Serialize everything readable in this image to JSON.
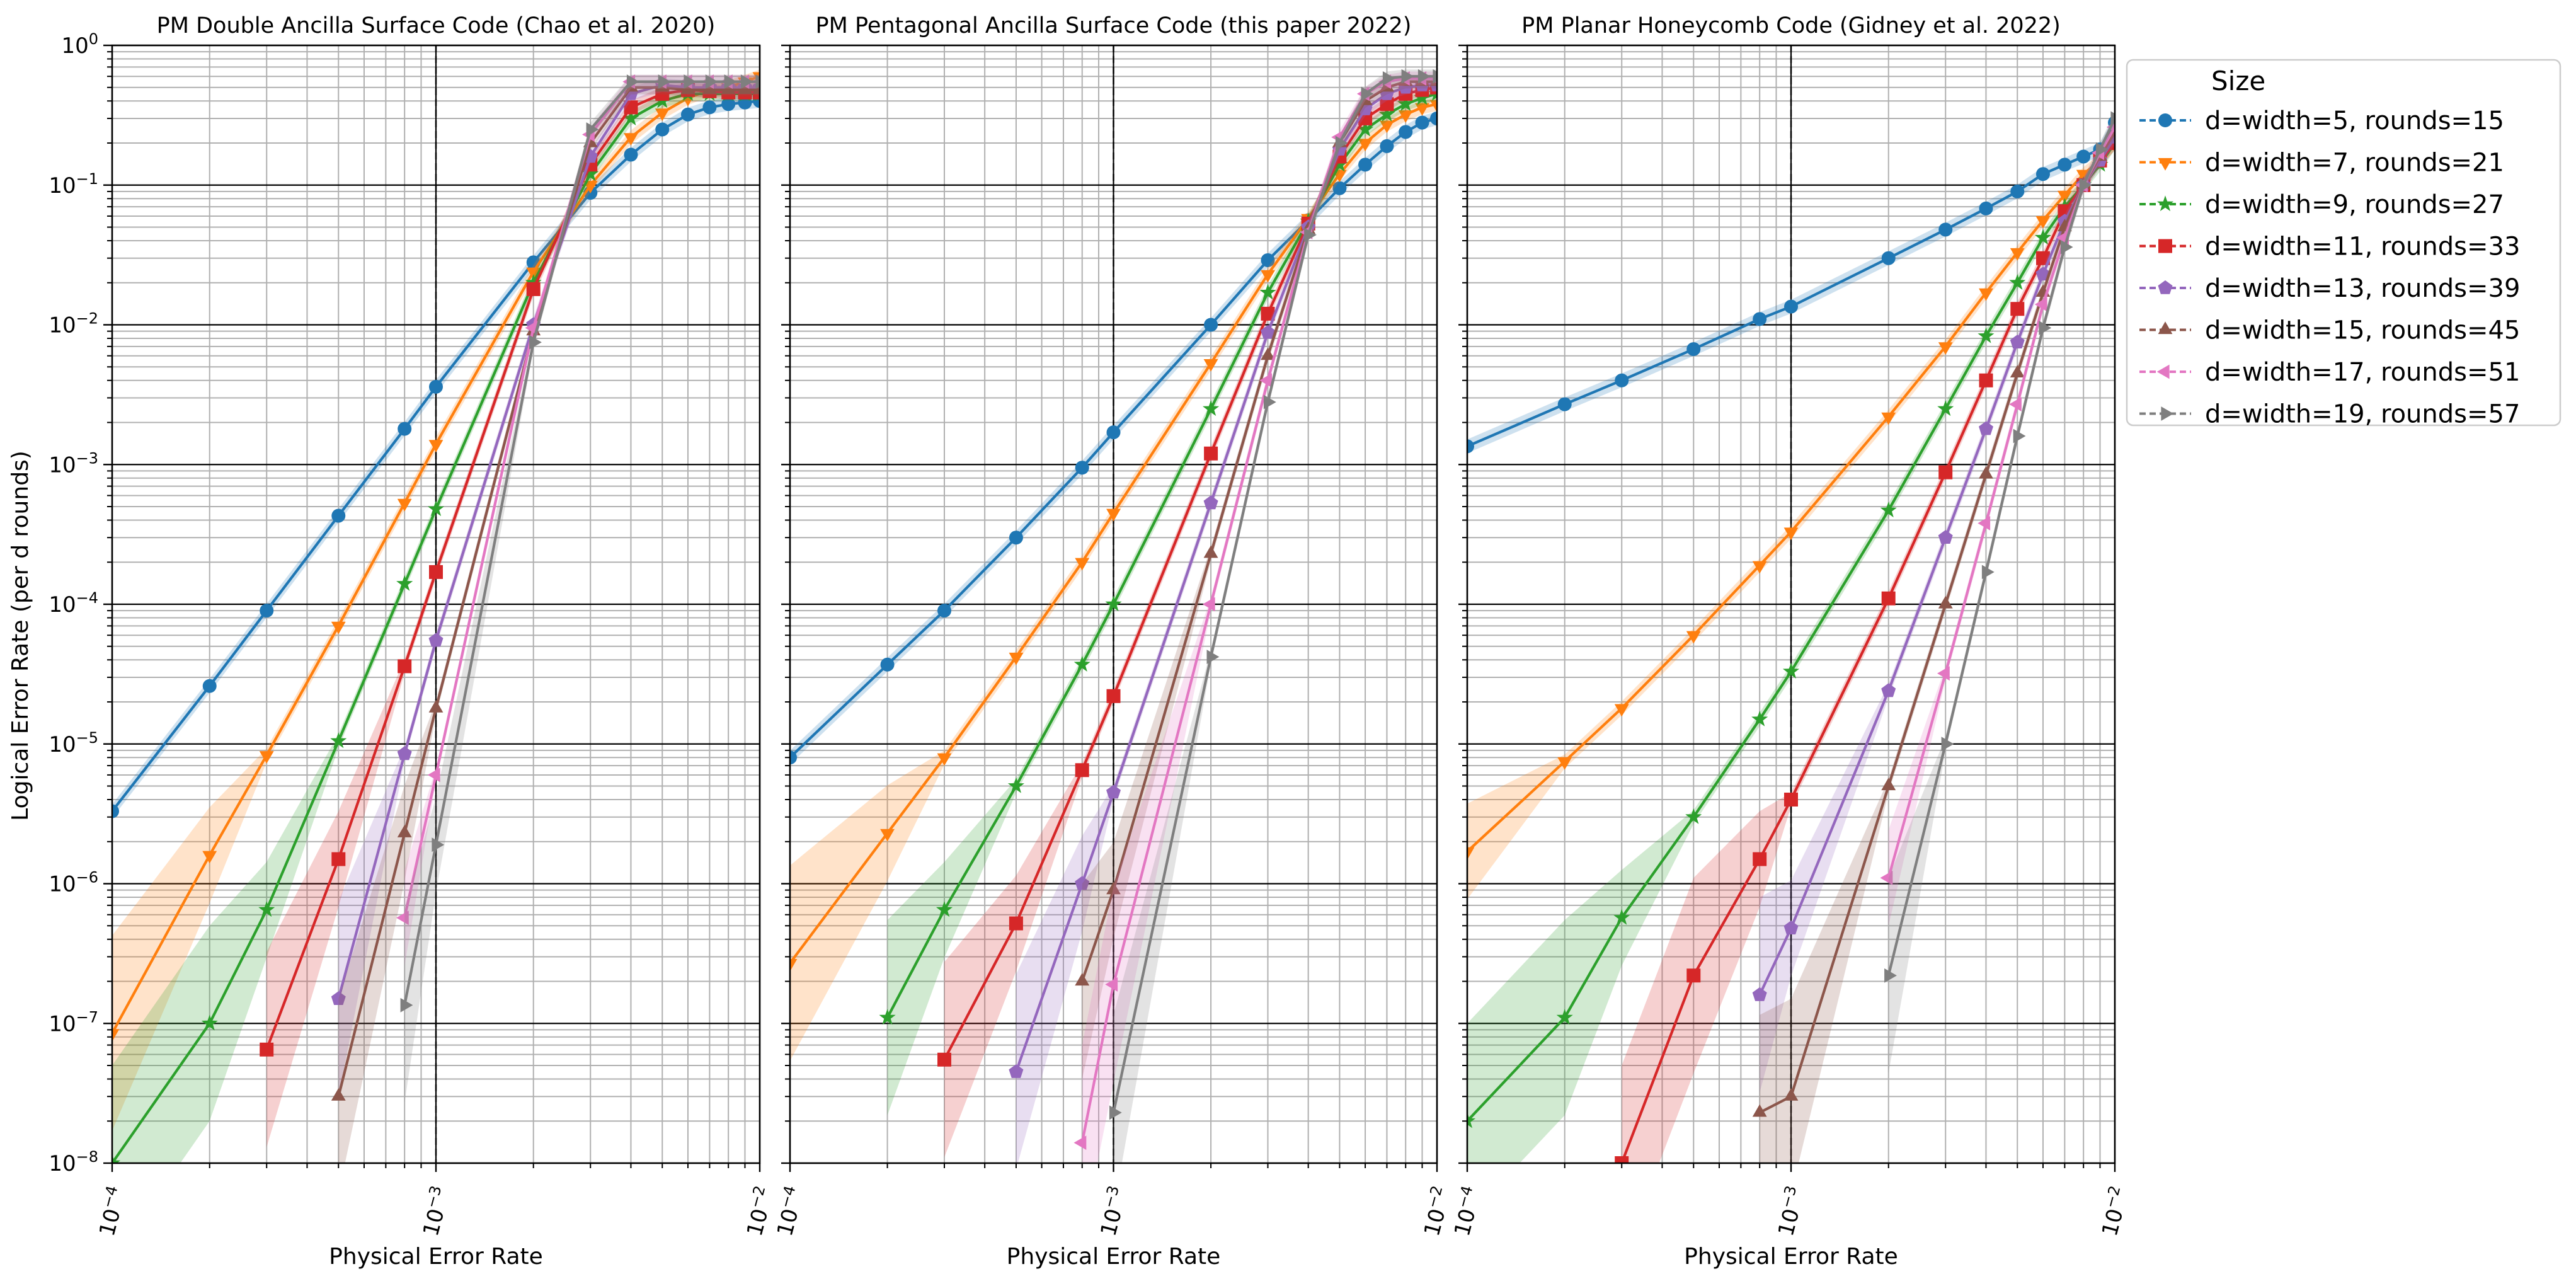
{
  "figure": {
    "ylabel": "Logical Error Rate (per d rounds)",
    "legend_title": "Size",
    "legend_placement": "outside-right-top"
  },
  "chart_data": [
    {
      "type": "line",
      "title": "PM Double Ancilla Surface Code (Chao et al. 2020)",
      "xlabel": "Physical Error Rate",
      "xscale": "log",
      "yscale": "log",
      "xlim": [
        0.0001,
        0.01
      ],
      "ylim": [
        1e-08,
        1
      ],
      "grid": true,
      "reference_line_x": 0.001,
      "x_tick_labels": [
        "10^-4",
        "10^-3",
        "10^-2"
      ],
      "y_tick_labels": [
        "10^-8",
        "10^-7",
        "10^-6",
        "10^-5",
        "10^-4",
        "10^-3",
        "10^-2",
        "10^-1",
        "10^0"
      ],
      "series": [
        {
          "name": "d=width=5, rounds=15",
          "x": [
            0.0001,
            0.0002,
            0.0003,
            0.0005,
            0.0008,
            0.001,
            0.002,
            0.003,
            0.004,
            0.005,
            0.006,
            0.007,
            0.008,
            0.009,
            0.01
          ],
          "y": [
            3.3e-06,
            2.6e-05,
            9e-05,
            0.00043,
            0.0018,
            0.0036,
            0.028,
            0.088,
            0.165,
            0.25,
            0.32,
            0.36,
            0.38,
            0.39,
            0.4
          ]
        },
        {
          "name": "d=width=7, rounds=21",
          "x": [
            0.0001,
            0.0002,
            0.0003,
            0.0005,
            0.0008,
            0.001,
            0.002,
            0.003,
            0.004,
            0.005,
            0.006,
            0.007,
            0.008,
            0.009,
            0.01
          ],
          "y": [
            8.5e-08,
            1.6e-06,
            8.3e-06,
            7e-05,
            0.00053,
            0.0014,
            0.024,
            0.1,
            0.22,
            0.33,
            0.42,
            0.48,
            0.5,
            0.55,
            0.6
          ]
        },
        {
          "name": "d=width=9, rounds=27",
          "x": [
            0.0001,
            0.0002,
            0.0003,
            0.0005,
            0.0008,
            0.001,
            0.002,
            0.003,
            0.004,
            0.005,
            0.006,
            0.007,
            0.008,
            0.009,
            0.01
          ],
          "y": [
            1e-08,
            1e-07,
            6.5e-07,
            1.05e-05,
            0.00014,
            0.00048,
            0.02,
            0.12,
            0.3,
            0.4,
            0.45,
            0.45,
            0.45,
            0.45,
            0.45
          ]
        },
        {
          "name": "d=width=11, rounds=33",
          "x": [
            0.0003,
            0.0005,
            0.0008,
            0.001,
            0.002,
            0.003,
            0.004,
            0.005,
            0.006,
            0.007,
            0.008,
            0.009,
            0.01
          ],
          "y": [
            6.5e-08,
            1.5e-06,
            3.6e-05,
            0.00017,
            0.018,
            0.14,
            0.36,
            0.45,
            0.48,
            0.47,
            0.46,
            0.46,
            0.46
          ]
        },
        {
          "name": "d=width=13, rounds=39",
          "x": [
            0.0005,
            0.0008,
            0.001,
            0.002,
            0.003,
            0.004,
            0.005,
            0.006,
            0.007,
            0.008,
            0.009,
            0.01
          ],
          "y": [
            1.5e-07,
            8.5e-06,
            5.5e-05,
            0.01,
            0.16,
            0.45,
            0.52,
            0.5,
            0.5,
            0.5,
            0.5,
            0.5
          ]
        },
        {
          "name": "d=width=15, rounds=45",
          "x": [
            0.0005,
            0.0008,
            0.001,
            0.002,
            0.003,
            0.004,
            0.005,
            0.006,
            0.007,
            0.008,
            0.009,
            0.01
          ],
          "y": [
            3e-08,
            2.3e-06,
            1.8e-05,
            0.009,
            0.2,
            0.5,
            0.5,
            0.48,
            0.48,
            0.48,
            0.48,
            0.48
          ]
        },
        {
          "name": "d=width=17, rounds=51",
          "x": [
            0.0008,
            0.001,
            0.002,
            0.003,
            0.004,
            0.005,
            0.006,
            0.007,
            0.008,
            0.009,
            0.01
          ],
          "y": [
            5.7e-07,
            6e-06,
            0.0095,
            0.23,
            0.55,
            0.55,
            0.55,
            0.55,
            0.55,
            0.55,
            0.55
          ]
        },
        {
          "name": "d=width=19, rounds=57",
          "x": [
            0.0008,
            0.001,
            0.002,
            0.003,
            0.004,
            0.005,
            0.006,
            0.007,
            0.008,
            0.009,
            0.01
          ],
          "y": [
            1.35e-07,
            1.9e-06,
            0.0075,
            0.25,
            0.55,
            0.55,
            0.55,
            0.55,
            0.55,
            0.55,
            0.55
          ]
        }
      ]
    },
    {
      "type": "line",
      "title": "PM Pentagonal Ancilla Surface Code (this paper 2022)",
      "xlabel": "Physical Error Rate",
      "xscale": "log",
      "yscale": "log",
      "xlim": [
        0.0001,
        0.01
      ],
      "ylim": [
        1e-08,
        1
      ],
      "grid": true,
      "reference_line_x": 0.001,
      "x_tick_labels": [
        "10^-4",
        "10^-3",
        "10^-2"
      ],
      "y_tick_labels": [],
      "series": [
        {
          "name": "d=width=5, rounds=15",
          "x": [
            0.0001,
            0.0002,
            0.0003,
            0.0005,
            0.0008,
            0.001,
            0.002,
            0.003,
            0.004,
            0.005,
            0.006,
            0.007,
            0.008,
            0.009,
            0.01
          ],
          "y": [
            8e-06,
            3.7e-05,
            9e-05,
            0.0003,
            0.00095,
            0.0017,
            0.01,
            0.029,
            0.056,
            0.095,
            0.14,
            0.19,
            0.24,
            0.28,
            0.3
          ]
        },
        {
          "name": "d=width=7, rounds=21",
          "x": [
            0.0001,
            0.0002,
            0.0003,
            0.0005,
            0.0008,
            0.001,
            0.002,
            0.003,
            0.004,
            0.005,
            0.006,
            0.007,
            0.008,
            0.009,
            0.01
          ],
          "y": [
            2.7e-07,
            2.3e-06,
            8e-06,
            4.2e-05,
            0.0002,
            0.00045,
            0.0053,
            0.023,
            0.058,
            0.12,
            0.2,
            0.27,
            0.32,
            0.36,
            0.38
          ]
        },
        {
          "name": "d=width=9, rounds=27",
          "x": [
            0.0002,
            0.0003,
            0.0005,
            0.0008,
            0.001,
            0.002,
            0.003,
            0.004,
            0.005,
            0.006,
            0.007,
            0.008,
            0.009,
            0.01
          ],
          "y": [
            1.1e-07,
            6.5e-07,
            5e-06,
            3.7e-05,
            0.0001,
            0.0025,
            0.017,
            0.055,
            0.14,
            0.25,
            0.32,
            0.38,
            0.42,
            0.45
          ]
        },
        {
          "name": "d=width=11, rounds=33",
          "x": [
            0.0003,
            0.0005,
            0.0008,
            0.001,
            0.002,
            0.003,
            0.004,
            0.005,
            0.006,
            0.007,
            0.008,
            0.009,
            0.01
          ],
          "y": [
            5.5e-08,
            5.2e-07,
            6.5e-06,
            2.2e-05,
            0.0012,
            0.012,
            0.053,
            0.16,
            0.3,
            0.38,
            0.45,
            0.48,
            0.5
          ]
        },
        {
          "name": "d=width=13, rounds=39",
          "x": [
            0.0005,
            0.0008,
            0.001,
            0.002,
            0.003,
            0.004,
            0.005,
            0.006,
            0.007,
            0.008,
            0.009,
            0.01
          ],
          "y": [
            4.5e-08,
            1e-06,
            4.5e-06,
            0.00053,
            0.0088,
            0.05,
            0.18,
            0.35,
            0.45,
            0.5,
            0.52,
            0.52
          ]
        },
        {
          "name": "d=width=15, rounds=45",
          "x": [
            0.0008,
            0.001,
            0.002,
            0.003,
            0.004,
            0.005,
            0.006,
            0.007,
            0.008,
            0.009,
            0.01
          ],
          "y": [
            2e-07,
            9e-07,
            0.00023,
            0.006,
            0.048,
            0.2,
            0.4,
            0.5,
            0.55,
            0.55,
            0.55
          ]
        },
        {
          "name": "d=width=17, rounds=51",
          "x": [
            0.0008,
            0.001,
            0.002,
            0.003,
            0.004,
            0.005,
            0.006,
            0.007,
            0.008,
            0.009,
            0.01
          ],
          "y": [
            1.4e-08,
            1.9e-07,
            0.0001,
            0.004,
            0.046,
            0.22,
            0.45,
            0.55,
            0.58,
            0.58,
            0.58
          ]
        },
        {
          "name": "d=width=19, rounds=57",
          "x": [
            0.001,
            0.002,
            0.003,
            0.004,
            0.005,
            0.006,
            0.007,
            0.008,
            0.009,
            0.01
          ],
          "y": [
            2.3e-08,
            4.2e-05,
            0.0028,
            0.044,
            0.2,
            0.45,
            0.58,
            0.6,
            0.6,
            0.6
          ]
        }
      ]
    },
    {
      "type": "line",
      "title": "PM Planar Honeycomb Code (Gidney et al. 2022)",
      "xlabel": "Physical Error Rate",
      "xscale": "log",
      "yscale": "log",
      "xlim": [
        0.0001,
        0.01
      ],
      "ylim": [
        1e-08,
        1
      ],
      "grid": true,
      "reference_line_x": 0.001,
      "x_tick_labels": [
        "10^-4",
        "10^-3",
        "10^-2"
      ],
      "y_tick_labels": [],
      "series": [
        {
          "name": "d=width=5, rounds=15",
          "x": [
            0.0001,
            0.0002,
            0.0003,
            0.0005,
            0.0008,
            0.001,
            0.002,
            0.003,
            0.004,
            0.005,
            0.006,
            0.007,
            0.008,
            0.009,
            0.01
          ],
          "y": [
            0.00135,
            0.0027,
            0.004,
            0.0067,
            0.011,
            0.0135,
            0.03,
            0.048,
            0.068,
            0.09,
            0.12,
            0.14,
            0.16,
            0.18,
            0.28
          ]
        },
        {
          "name": "d=width=7, rounds=21",
          "x": [
            0.0001,
            0.0002,
            0.0003,
            0.0005,
            0.0008,
            0.001,
            0.002,
            0.003,
            0.004,
            0.005,
            0.006,
            0.007,
            0.008,
            0.009,
            0.01
          ],
          "y": [
            1.7e-06,
            7.5e-06,
            1.8e-05,
            6e-05,
            0.00019,
            0.00033,
            0.0022,
            0.007,
            0.017,
            0.033,
            0.056,
            0.085,
            0.12,
            0.15,
            0.2
          ]
        },
        {
          "name": "d=width=9, rounds=27",
          "x": [
            0.0001,
            0.0002,
            0.0003,
            0.0005,
            0.0008,
            0.001,
            0.002,
            0.003,
            0.004,
            0.005,
            0.006,
            0.007,
            0.008,
            0.009,
            0.01
          ],
          "y": [
            2e-08,
            1.1e-07,
            5.7e-07,
            3e-06,
            1.5e-05,
            3.3e-05,
            0.00047,
            0.0025,
            0.0083,
            0.02,
            0.042,
            0.07,
            0.1,
            0.14,
            0.2
          ]
        },
        {
          "name": "d=width=11, rounds=33",
          "x": [
            0.0003,
            0.0005,
            0.0008,
            0.001,
            0.002,
            0.003,
            0.004,
            0.005,
            0.006,
            0.007,
            0.008,
            0.009,
            0.01
          ],
          "y": [
            1e-08,
            2.2e-07,
            1.5e-06,
            4e-06,
            0.00011,
            0.00088,
            0.004,
            0.013,
            0.03,
            0.065,
            0.1,
            0.15,
            0.2
          ]
        },
        {
          "name": "d=width=13, rounds=39",
          "x": [
            0.0008,
            0.001,
            0.002,
            0.003,
            0.004,
            0.005,
            0.006,
            0.007,
            0.008,
            0.009,
            0.01
          ],
          "y": [
            1.6e-07,
            4.8e-07,
            2.4e-05,
            0.0003,
            0.0018,
            0.0075,
            0.023,
            0.055,
            0.1,
            0.15,
            0.22
          ]
        },
        {
          "name": "d=width=15, rounds=45",
          "x": [
            0.0008,
            0.001,
            0.002,
            0.003,
            0.004,
            0.005,
            0.006,
            0.007,
            0.008,
            0.009,
            0.01
          ],
          "y": [
            2.3e-08,
            3e-08,
            5e-06,
            0.0001,
            0.00085,
            0.0045,
            0.017,
            0.05,
            0.1,
            0.16,
            0.24
          ]
        },
        {
          "name": "d=width=17, rounds=51",
          "x": [
            0.002,
            0.003,
            0.004,
            0.005,
            0.006,
            0.007,
            0.008,
            0.009,
            0.01
          ],
          "y": [
            1.1e-06,
            3.2e-05,
            0.00038,
            0.0027,
            0.014,
            0.042,
            0.1,
            0.17,
            0.26
          ]
        },
        {
          "name": "d=width=19, rounds=57",
          "x": [
            0.002,
            0.003,
            0.004,
            0.005,
            0.006,
            0.007,
            0.008,
            0.009,
            0.01
          ],
          "y": [
            2.2e-07,
            1e-05,
            0.00017,
            0.0016,
            0.0095,
            0.036,
            0.1,
            0.18,
            0.3
          ]
        }
      ]
    }
  ],
  "series_style": [
    {
      "color": "#1f77b4",
      "marker": "circle"
    },
    {
      "color": "#ff7f0e",
      "marker": "triangle-down"
    },
    {
      "color": "#2ca02c",
      "marker": "star"
    },
    {
      "color": "#d62728",
      "marker": "square"
    },
    {
      "color": "#9467bd",
      "marker": "pentagon"
    },
    {
      "color": "#8c564b",
      "marker": "triangle-up"
    },
    {
      "color": "#e377c2",
      "marker": "triangle-left"
    },
    {
      "color": "#7f7f7f",
      "marker": "triangle-right"
    }
  ]
}
